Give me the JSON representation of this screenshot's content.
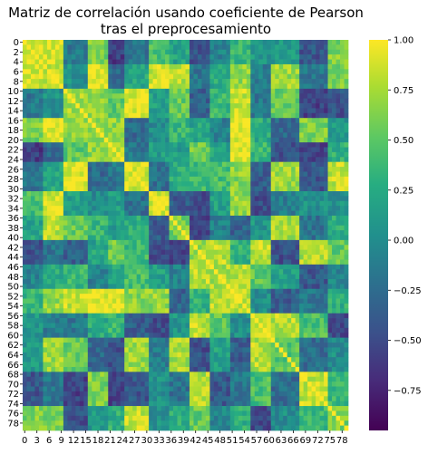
{
  "chart_data": {
    "type": "heatmap",
    "title_line1": "Matriz de correlación usando coeficiente de Pearson",
    "title_line2": "tras el preprocesamiento",
    "n": 80,
    "x_tick_labels": [
      "0",
      "3",
      "6",
      "9",
      "12",
      "15",
      "18",
      "21",
      "24",
      "27",
      "30",
      "33",
      "36",
      "39",
      "42",
      "45",
      "48",
      "51",
      "54",
      "57",
      "60",
      "63",
      "66",
      "69",
      "72",
      "75",
      "78"
    ],
    "y_tick_labels": [
      "0",
      "2",
      "4",
      "6",
      "8",
      "10",
      "12",
      "14",
      "16",
      "18",
      "20",
      "22",
      "24",
      "26",
      "28",
      "30",
      "32",
      "34",
      "36",
      "38",
      "40",
      "42",
      "44",
      "46",
      "48",
      "50",
      "52",
      "54",
      "56",
      "58",
      "60",
      "62",
      "64",
      "66",
      "68",
      "70",
      "72",
      "74",
      "76",
      "78"
    ],
    "colorbar": {
      "vmin": -0.95,
      "vmax": 1.0,
      "tick_values": [
        1.0,
        0.75,
        0.5,
        0.25,
        0.0,
        -0.25,
        -0.5,
        -0.75
      ],
      "tick_labels": [
        "1.00",
        "0.75",
        "0.50",
        "0.25",
        "0.00",
        "−0.25",
        "−0.50",
        "−0.75"
      ],
      "colormap": "viridis"
    },
    "groups": [
      {
        "start": 0,
        "end": 4,
        "level": 0.95
      },
      {
        "start": 5,
        "end": 9,
        "level": 0.85
      },
      {
        "start": 10,
        "end": 15,
        "level": 0.75
      },
      {
        "start": 16,
        "end": 20,
        "level": 0.7
      },
      {
        "start": 21,
        "end": 24,
        "level": 0.8
      },
      {
        "start": 25,
        "end": 30,
        "level": 0.9
      },
      {
        "start": 31,
        "end": 35,
        "level": 0.85
      },
      {
        "start": 36,
        "end": 40,
        "level": 0.6
      },
      {
        "start": 41,
        "end": 45,
        "level": 0.7
      },
      {
        "start": 46,
        "end": 50,
        "level": 0.75
      },
      {
        "start": 51,
        "end": 55,
        "level": 0.85
      },
      {
        "start": 56,
        "end": 60,
        "level": 0.8
      },
      {
        "start": 61,
        "end": 67,
        "level": 0.5
      },
      {
        "start": 68,
        "end": 74,
        "level": 0.85
      },
      {
        "start": 75,
        "end": 79,
        "level": 0.6
      }
    ]
  }
}
